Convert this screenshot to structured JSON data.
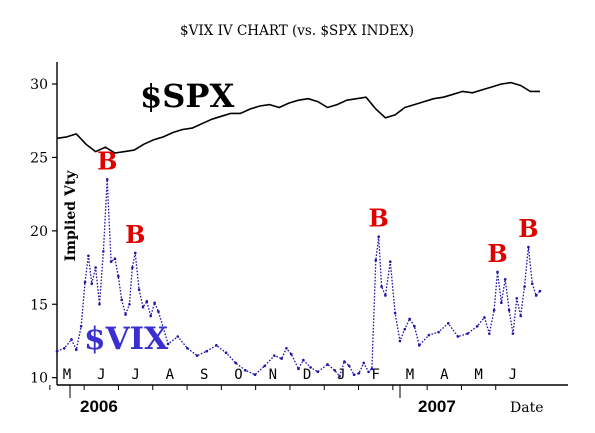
{
  "chart_data": {
    "type": "line",
    "title": "$VIX IV CHART (vs. $SPX INDEX)",
    "ylabel": "Implied Vty",
    "xlabel": "Date",
    "ylim": [
      9.5,
      31.5
    ],
    "yticks": [
      10,
      15,
      20,
      25,
      30
    ],
    "month_labels": [
      "M",
      "J",
      "J",
      "A",
      "S",
      "O",
      "N",
      "D",
      "J",
      "F",
      "M",
      "A",
      "M",
      "J"
    ],
    "year_labels": [
      "2006",
      "2007"
    ],
    "annotation_text": "B",
    "series": [
      {
        "name": "$SPX",
        "color": "#000000",
        "style": "solid",
        "x": [
          0,
          2,
          4,
          6,
          8,
          10,
          12,
          14,
          16,
          18,
          20,
          22,
          24,
          26,
          28,
          30,
          32,
          34,
          36,
          38,
          40,
          42,
          44,
          46,
          48,
          50,
          52,
          54,
          56,
          58,
          60,
          62,
          64,
          66,
          68,
          70,
          72,
          74,
          76,
          78,
          80,
          82,
          84,
          86,
          88,
          90,
          92,
          94,
          96,
          98,
          100
        ],
        "values": [
          26.3,
          26.4,
          26.6,
          25.9,
          25.4,
          25.7,
          25.3,
          25.4,
          25.5,
          25.9,
          26.2,
          26.4,
          26.7,
          26.9,
          27.0,
          27.3,
          27.6,
          27.8,
          28.0,
          28.0,
          28.3,
          28.5,
          28.6,
          28.4,
          28.7,
          28.9,
          29.0,
          28.8,
          28.4,
          28.6,
          28.9,
          29.0,
          29.1,
          28.3,
          27.7,
          27.9,
          28.4,
          28.6,
          28.8,
          29.0,
          29.1,
          29.3,
          29.5,
          29.4,
          29.6,
          29.8,
          30.0,
          30.1,
          29.9,
          29.5,
          29.5
        ]
      },
      {
        "name": "$VIX",
        "color": "#1c14a6",
        "style": "dotted",
        "x": [
          0,
          1.5,
          3,
          4,
          5,
          5.8,
          6.5,
          7.2,
          8,
          8.8,
          9.6,
          10.4,
          11.2,
          12,
          12.7,
          13.4,
          14.2,
          15,
          15.6,
          16.2,
          17,
          17.8,
          18.6,
          19.4,
          20.2,
          21,
          23,
          25,
          27,
          29,
          31,
          33,
          35,
          37,
          39,
          41,
          43,
          45,
          46.5,
          47.5,
          48.5,
          50,
          51,
          52.5,
          54,
          56,
          57.5,
          58.5,
          59.5,
          60.5,
          61.5,
          62.5,
          63.5,
          64.5,
          65.2,
          66,
          66.6,
          67.2,
          68,
          69,
          70,
          71,
          72,
          73,
          74,
          75,
          77,
          79,
          81,
          83,
          85,
          87,
          88.5,
          89.5,
          90.5,
          91.2,
          92,
          92.8,
          93.6,
          94.4,
          95.2,
          96,
          96.8,
          97.6,
          98.4,
          99.2,
          100
        ],
        "values": [
          11.8,
          12.0,
          12.6,
          11.9,
          13.5,
          16.5,
          18.3,
          16.4,
          17.5,
          15.0,
          18.6,
          23.5,
          17.9,
          18.1,
          16.9,
          15.3,
          14.3,
          15.0,
          17.5,
          18.5,
          16.0,
          14.8,
          15.2,
          14.2,
          15.1,
          14.5,
          12.3,
          12.8,
          12.0,
          11.5,
          11.8,
          12.2,
          11.7,
          11.0,
          10.5,
          10.2,
          10.8,
          11.5,
          11.3,
          12.0,
          11.6,
          10.6,
          11.2,
          10.7,
          10.4,
          10.9,
          10.5,
          10.1,
          11.1,
          10.8,
          10.2,
          10.3,
          11.0,
          10.4,
          10.6,
          18.0,
          19.6,
          16.2,
          15.6,
          17.9,
          14.4,
          12.5,
          13.3,
          14.0,
          13.5,
          12.2,
          12.9,
          13.1,
          13.7,
          12.8,
          13.0,
          13.5,
          14.1,
          13.0,
          14.6,
          17.2,
          15.1,
          16.7,
          14.6,
          13.0,
          15.4,
          14.2,
          16.2,
          18.9,
          16.4,
          15.6,
          15.9
        ]
      }
    ]
  },
  "labels": {
    "spx_label": "$SPX",
    "vix_label": "$VIX"
  }
}
